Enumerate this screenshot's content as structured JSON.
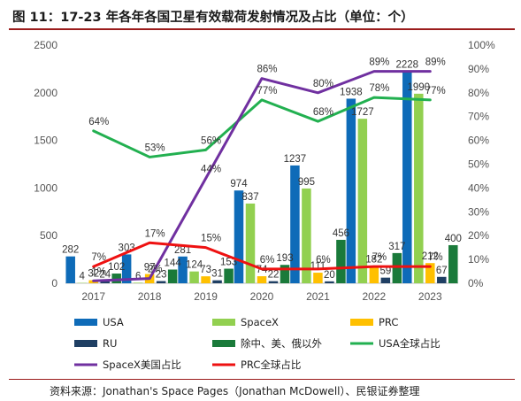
{
  "title": "图 11：17-23 年各年各国卫星有效载荷发射情况及占比（单位：个）",
  "source": "资料来源：Jonathan's Space Pages（Jonathan McDowell）、民银证券整理",
  "colors": {
    "usa": "#0e6bb8",
    "spacex": "#92d050",
    "prc": "#ffc000",
    "ru": "#1f3f63",
    "other": "#1a7a3a",
    "usa_share": "#22b050",
    "spacex_share": "#7030a0",
    "prc_share": "#ee1111"
  },
  "chart_data": {
    "type": "bar+line",
    "categories": [
      "2017",
      "2018",
      "2019",
      "2020",
      "2021",
      "2022",
      "2023"
    ],
    "y_left": {
      "min": 0,
      "max": 2500,
      "step": 500,
      "ticks": [
        "0",
        "500",
        "1000",
        "1500",
        "2000",
        "2500"
      ]
    },
    "y_right": {
      "min": 0,
      "max": 100,
      "step": 10,
      "ticks": [
        "0%",
        "10%",
        "20%",
        "30%",
        "40%",
        "50%",
        "60%",
        "70%",
        "80%",
        "90%",
        "100%"
      ]
    },
    "bar_series": [
      {
        "name": "USA",
        "key": "usa",
        "values": [
          282,
          303,
          281,
          974,
          1237,
          1938,
          2228
        ]
      },
      {
        "name": "SpaceX",
        "key": "spacex",
        "values": [
          4,
          6,
          124,
          837,
          995,
          1727,
          1990
        ]
      },
      {
        "name": "PRC",
        "key": "prc",
        "values": [
          32,
          97,
          73,
          74,
          111,
          182,
          212
        ]
      },
      {
        "name": "RU",
        "key": "ru",
        "values": [
          24,
          23,
          31,
          22,
          20,
          59,
          67
        ]
      },
      {
        "name": "除中、美、俄以外",
        "key": "other",
        "values": [
          102,
          144,
          153,
          193,
          456,
          317,
          400
        ]
      }
    ],
    "line_series": [
      {
        "name": "USA全球占比",
        "key": "usa_share",
        "values": [
          64,
          53,
          56,
          77,
          68,
          78,
          77
        ],
        "labels": [
          "64%",
          "53%",
          "56%",
          "77%",
          "68%",
          "78%",
          "77%"
        ]
      },
      {
        "name": "SpaceX美国占比",
        "key": "spacex_share",
        "values": [
          1,
          2,
          44,
          86,
          80,
          89,
          89
        ],
        "labels": [
          "1%",
          "2%",
          "44%",
          "86%",
          "80%",
          "89%",
          "89%"
        ]
      },
      {
        "name": "PRC全球占比",
        "key": "prc_share",
        "values": [
          7,
          17,
          15,
          6,
          6,
          7,
          7
        ],
        "labels": [
          "7%",
          "17%",
          "15%",
          "6%",
          "6%",
          "7%",
          "7%"
        ]
      }
    ],
    "legend_position": "bottom",
    "grid": false
  }
}
